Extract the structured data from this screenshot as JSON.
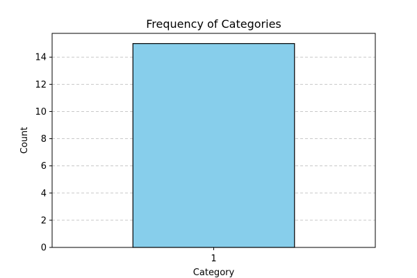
{
  "chart_data": {
    "type": "bar",
    "title": "Frequency of Categories",
    "xlabel": "Category",
    "ylabel": "Count",
    "categories": [
      "1"
    ],
    "values": [
      15
    ],
    "ylim": [
      0,
      15.75
    ],
    "yticks": [
      0,
      2,
      4,
      6,
      8,
      10,
      12,
      14
    ],
    "grid": "y-dashed",
    "legend": "none",
    "colors": {
      "bar_fill": "#87ceeb",
      "bar_edge": "#000000",
      "grid": "#c8c8c8",
      "axis": "#000000"
    }
  }
}
